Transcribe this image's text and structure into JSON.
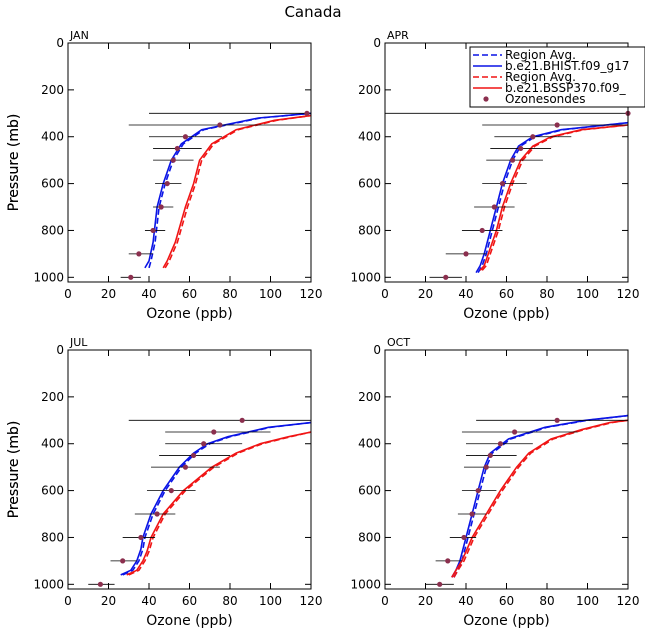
{
  "page_title": "Canada",
  "colors": {
    "blue": "#0a14e6",
    "red": "#f01414",
    "marker": "#8b2f4e",
    "errbar": "#000000"
  },
  "legend": {
    "entries": [
      {
        "label": "Region Avg.",
        "style": "blue-dashed"
      },
      {
        "label": "b.e21.BHIST.f09_g17",
        "style": "blue-solid"
      },
      {
        "label": "Region Avg.",
        "style": "red-dashed"
      },
      {
        "label": "b.e21.BSSP370.f09_",
        "style": "red-solid"
      },
      {
        "label": "Ozonesondes",
        "style": "marker"
      }
    ]
  },
  "chart_data": [
    {
      "type": "line",
      "title": "JAN",
      "xlabel": "Ozone (ppb)",
      "ylabel": "Pressure (mb)",
      "xlim": [
        0,
        120
      ],
      "ylim": [
        1020,
        0
      ],
      "xticks": [
        0,
        20,
        40,
        60,
        80,
        100,
        120
      ],
      "yticks": [
        0,
        200,
        400,
        600,
        800,
        1000
      ],
      "series": [
        {
          "name": "Region Avg.",
          "color": "blue",
          "dash": true,
          "pressure": [
            960,
            930,
            850,
            700,
            600,
            500,
            430,
            370,
            320,
            300
          ],
          "ozone": [
            40,
            41,
            43,
            45,
            48,
            52,
            57,
            67,
            95,
            120
          ]
        },
        {
          "name": "b.e21.BHIST.f09_g17",
          "color": "blue",
          "dash": false,
          "pressure": [
            960,
            930,
            850,
            700,
            600,
            500,
            430,
            370,
            320,
            300
          ],
          "ozone": [
            38,
            40,
            42,
            44,
            47,
            51,
            56,
            66,
            94,
            120
          ]
        },
        {
          "name": "Region Avg.",
          "color": "red",
          "dash": true,
          "pressure": [
            960,
            930,
            850,
            700,
            600,
            500,
            430,
            370,
            330,
            310
          ],
          "ozone": [
            48,
            50,
            54,
            59,
            63,
            66,
            72,
            84,
            103,
            120
          ]
        },
        {
          "name": "b.e21.BSSP370.f09_",
          "color": "red",
          "dash": false,
          "pressure": [
            960,
            930,
            850,
            700,
            600,
            500,
            430,
            370,
            330,
            310
          ],
          "ozone": [
            47,
            49,
            53,
            58,
            62,
            65,
            71,
            83,
            102,
            120
          ]
        },
        {
          "name": "Ozonesondes",
          "type": "points",
          "pressure": [
            1000,
            900,
            800,
            700,
            600,
            500,
            450,
            400,
            350,
            300
          ],
          "ozone": [
            31,
            35,
            42,
            46,
            49,
            52,
            54,
            58,
            75,
            118
          ],
          "xerr_low": [
            26,
            30,
            38,
            42,
            43,
            42,
            42,
            40,
            30,
            40
          ],
          "xerr_high": [
            36,
            42,
            48,
            52,
            56,
            62,
            66,
            76,
            120,
            120
          ]
        }
      ]
    },
    {
      "type": "line",
      "title": "APR",
      "xlabel": "Ozone (ppb)",
      "ylabel": "Pressure (mb)",
      "xlim": [
        0,
        120
      ],
      "ylim": [
        1020,
        0
      ],
      "xticks": [
        0,
        20,
        40,
        60,
        80,
        100,
        120
      ],
      "yticks": [
        0,
        200,
        400,
        600,
        800,
        1000
      ],
      "series": [
        {
          "name": "Region Avg.",
          "color": "blue",
          "dash": true,
          "pressure": [
            980,
            950,
            900,
            800,
            700,
            600,
            500,
            440,
            400,
            370,
            340
          ],
          "ozone": [
            46,
            48,
            50,
            53,
            56,
            59,
            63,
            67,
            74,
            88,
            120
          ]
        },
        {
          "name": "b.e21.BHIST.f09_g17",
          "color": "blue",
          "dash": false,
          "pressure": [
            980,
            950,
            900,
            800,
            700,
            600,
            500,
            440,
            400,
            370,
            340
          ],
          "ozone": [
            45,
            47,
            49,
            52,
            55,
            58,
            62,
            66,
            73,
            87,
            120
          ]
        },
        {
          "name": "Region Avg.",
          "color": "red",
          "dash": true,
          "pressure": [
            970,
            950,
            900,
            800,
            700,
            600,
            500,
            440,
            400,
            370,
            350
          ],
          "ozone": [
            48,
            50,
            52,
            56,
            59,
            63,
            68,
            74,
            83,
            98,
            120
          ]
        },
        {
          "name": "b.e21.BSSP370.f09_",
          "color": "red",
          "dash": false,
          "pressure": [
            970,
            950,
            900,
            800,
            700,
            600,
            500,
            440,
            400,
            370,
            350
          ],
          "ozone": [
            47,
            49,
            51,
            55,
            58,
            62,
            67,
            73,
            82,
            97,
            120
          ]
        },
        {
          "name": "Ozonesondes",
          "type": "points",
          "pressure": [
            1000,
            900,
            800,
            700,
            600,
            500,
            450,
            400,
            350,
            300
          ],
          "ozone": [
            30,
            40,
            48,
            54,
            58,
            63,
            67,
            73,
            85,
            120
          ],
          "xerr_low": [
            22,
            30,
            38,
            44,
            48,
            50,
            52,
            54,
            48,
            0
          ],
          "xerr_high": [
            38,
            50,
            58,
            64,
            70,
            78,
            82,
            92,
            120,
            120
          ]
        }
      ]
    },
    {
      "type": "line",
      "title": "JUL",
      "xlabel": "Ozone (ppb)",
      "ylabel": "Pressure (mb)",
      "xlim": [
        0,
        120
      ],
      "ylim": [
        1020,
        0
      ],
      "xticks": [
        0,
        20,
        40,
        60,
        80,
        100,
        120
      ],
      "yticks": [
        0,
        200,
        400,
        600,
        800,
        1000
      ],
      "series": [
        {
          "name": "Region Avg.",
          "color": "blue",
          "dash": true,
          "pressure": [
            960,
            940,
            900,
            850,
            800,
            700,
            600,
            500,
            440,
            400,
            370,
            330,
            310
          ],
          "ozone": [
            27,
            32,
            35,
            37,
            38,
            42,
            48,
            56,
            63,
            70,
            80,
            100,
            120
          ]
        },
        {
          "name": "b.e21.BHIST.f09_g17",
          "color": "blue",
          "dash": false,
          "pressure": [
            960,
            940,
            900,
            850,
            800,
            700,
            600,
            500,
            440,
            400,
            370,
            330,
            310
          ],
          "ozone": [
            26,
            31,
            34,
            36,
            37,
            41,
            47,
            55,
            62,
            69,
            79,
            99,
            120
          ]
        },
        {
          "name": "Region Avg.",
          "color": "red",
          "dash": true,
          "pressure": [
            960,
            940,
            900,
            860,
            800,
            700,
            600,
            500,
            440,
            400,
            370,
            350
          ],
          "ozone": [
            30,
            35,
            38,
            40,
            42,
            48,
            58,
            72,
            84,
            96,
            110,
            120
          ]
        },
        {
          "name": "b.e21.BSSP370.f09_",
          "color": "red",
          "dash": false,
          "pressure": [
            960,
            940,
            900,
            860,
            800,
            700,
            600,
            500,
            440,
            400,
            370,
            350
          ],
          "ozone": [
            29,
            34,
            37,
            39,
            41,
            47,
            57,
            71,
            83,
            95,
            109,
            120
          ]
        },
        {
          "name": "Ozonesondes",
          "type": "points",
          "pressure": [
            1000,
            900,
            800,
            700,
            600,
            500,
            450,
            400,
            350,
            300
          ],
          "ozone": [
            16,
            27,
            36,
            44,
            51,
            58,
            62,
            67,
            72,
            86
          ],
          "xerr_low": [
            10,
            21,
            27,
            33,
            39,
            41,
            45,
            48,
            48,
            30
          ],
          "xerr_high": [
            23,
            34,
            43,
            53,
            63,
            75,
            80,
            86,
            100,
            120
          ]
        }
      ]
    },
    {
      "type": "line",
      "title": "OCT",
      "xlabel": "Ozone (ppb)",
      "ylabel": "Pressure (mb)",
      "xlim": [
        0,
        120
      ],
      "ylim": [
        1020,
        0
      ],
      "xticks": [
        0,
        20,
        40,
        60,
        80,
        100,
        120
      ],
      "yticks": [
        0,
        200,
        400,
        600,
        800,
        1000
      ],
      "series": [
        {
          "name": "Region Avg.",
          "color": "blue",
          "dash": true,
          "pressure": [
            970,
            940,
            900,
            800,
            700,
            600,
            500,
            440,
            380,
            330,
            300,
            280
          ],
          "ozone": [
            34,
            36,
            38,
            41,
            44,
            47,
            50,
            53,
            62,
            80,
            100,
            120
          ]
        },
        {
          "name": "b.e21.BHIST.f09_g17",
          "color": "blue",
          "dash": false,
          "pressure": [
            970,
            940,
            900,
            800,
            700,
            600,
            500,
            440,
            380,
            330,
            300,
            280
          ],
          "ozone": [
            33,
            35,
            37,
            40,
            43,
            46,
            49,
            52,
            61,
            79,
            99,
            120
          ]
        },
        {
          "name": "Region Avg.",
          "color": "red",
          "dash": true,
          "pressure": [
            970,
            940,
            900,
            800,
            700,
            600,
            500,
            440,
            380,
            340,
            310,
            300
          ],
          "ozone": [
            34,
            36,
            39,
            44,
            51,
            58,
            66,
            72,
            83,
            98,
            112,
            120
          ]
        },
        {
          "name": "b.e21.BSSP370.f09_",
          "color": "red",
          "dash": false,
          "pressure": [
            970,
            940,
            900,
            800,
            700,
            600,
            500,
            440,
            380,
            340,
            310,
            300
          ],
          "ozone": [
            33,
            35,
            38,
            43,
            50,
            57,
            65,
            71,
            82,
            97,
            111,
            120
          ]
        },
        {
          "name": "Ozonesondes",
          "type": "points",
          "pressure": [
            1000,
            900,
            800,
            700,
            600,
            500,
            450,
            400,
            350,
            300
          ],
          "ozone": [
            27,
            31,
            39,
            43,
            46,
            50,
            52,
            57,
            64,
            85
          ],
          "xerr_low": [
            20,
            25,
            32,
            36,
            38,
            39,
            40,
            40,
            38,
            45
          ],
          "xerr_high": [
            34,
            38,
            45,
            50,
            55,
            62,
            65,
            73,
            95,
            120
          ]
        }
      ]
    }
  ]
}
